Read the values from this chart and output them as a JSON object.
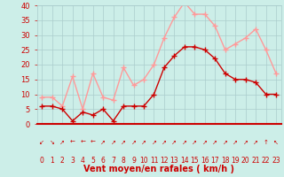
{
  "hours": [
    0,
    1,
    2,
    3,
    4,
    5,
    6,
    7,
    8,
    9,
    10,
    11,
    12,
    13,
    14,
    15,
    16,
    17,
    18,
    19,
    20,
    21,
    22,
    23
  ],
  "wind_mean": [
    6,
    6,
    5,
    1,
    4,
    3,
    5,
    1,
    6,
    6,
    6,
    10,
    19,
    23,
    26,
    26,
    25,
    22,
    17,
    15,
    15,
    14,
    10,
    10
  ],
  "wind_gust": [
    9,
    9,
    6,
    16,
    5,
    17,
    9,
    8,
    19,
    13,
    15,
    20,
    29,
    36,
    41,
    37,
    37,
    33,
    25,
    27,
    29,
    32,
    25,
    17
  ],
  "wind_dir_symbols": [
    "↙",
    "↘",
    "↗",
    "←",
    "←",
    "←",
    "↗",
    "↗",
    "↗",
    "↗",
    "↗",
    "↗",
    "↗",
    "↗",
    "↗",
    "↗",
    "↗",
    "↗",
    "↗",
    "↗",
    "↗",
    "↗",
    "↑",
    "↖"
  ],
  "bg_color": "#cceee8",
  "grid_color": "#aacccc",
  "mean_color": "#cc0000",
  "gust_color": "#ff9999",
  "xlabel": "Vent moyen/en rafales ( km/h )",
  "xlabel_color": "#cc0000",
  "tick_color": "#cc0000",
  "ylim": [
    0,
    40
  ],
  "yticks": [
    0,
    5,
    10,
    15,
    20,
    25,
    30,
    35,
    40
  ],
  "marker": "+",
  "linewidth": 1.0,
  "markersize": 4
}
